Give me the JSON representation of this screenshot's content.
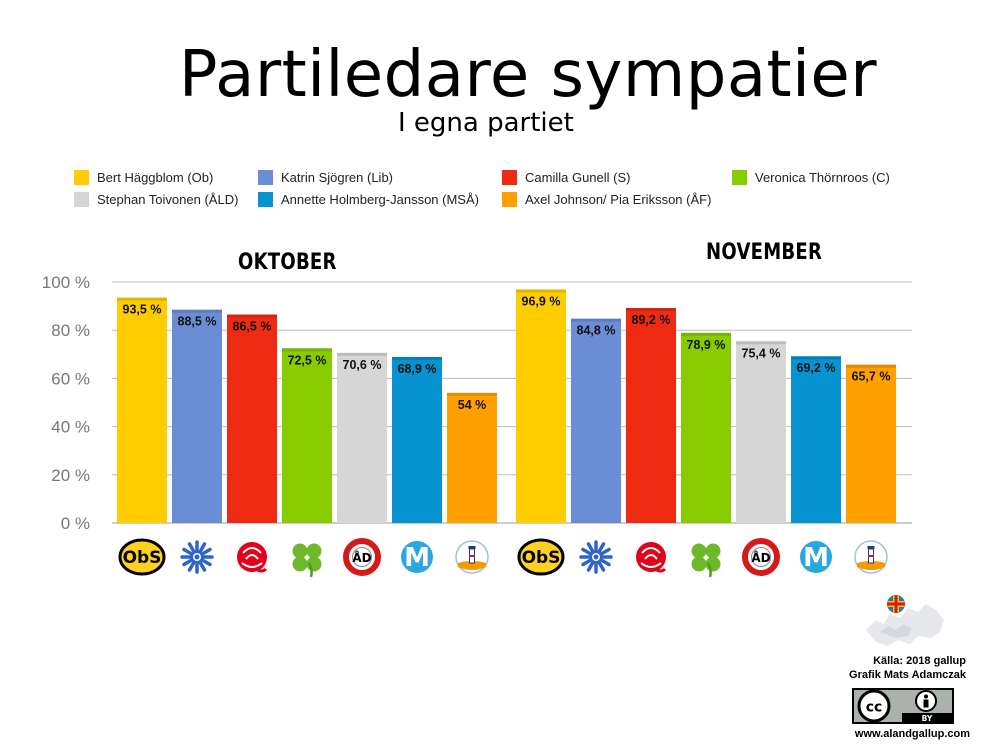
{
  "chart_data": {
    "type": "bar",
    "title": "Partiledare sympatier",
    "subtitle": "I egna partiet",
    "groups": [
      "OKTOBER",
      "NOVEMBER"
    ],
    "series": [
      {
        "name": "Bert Häggblom (Ob)",
        "color": "#FFCC00",
        "logo": "obs-logo-icon",
        "values": [
          93.5,
          96.9
        ],
        "labels": [
          "93,5 %",
          "96,9 %"
        ]
      },
      {
        "name": "Katrin Sjögren (Lib)",
        "color": "#6B8DD6",
        "logo": "snowflake-logo-icon",
        "values": [
          88.5,
          84.8
        ],
        "labels": [
          "88,5 %",
          "84,8 %"
        ]
      },
      {
        "name": "Camilla Gunell (S)",
        "color": "#EE2A12",
        "logo": "rose-logo-icon",
        "values": [
          86.5,
          89.2
        ],
        "labels": [
          "86,5 %",
          "89,2 %"
        ]
      },
      {
        "name": "Veronica Thörnroos (C)",
        "color": "#88CC00",
        "logo": "clover-logo-icon",
        "values": [
          72.5,
          78.9
        ],
        "labels": [
          "72,5 %",
          "78,9 %"
        ]
      },
      {
        "name": "Stephan Toivonen (ÅLD)",
        "color": "#D6D6D6",
        "logo": "lifebuoy-ald-logo-icon",
        "values": [
          70.6,
          75.4
        ],
        "labels": [
          "70,6 %",
          "75,4 %"
        ]
      },
      {
        "name": "Annette Holmberg-Jansson (MSÅ)",
        "color": "#0792D0",
        "logo": "m-logo-icon",
        "values": [
          68.9,
          69.2
        ],
        "labels": [
          "68,9 %",
          "69,2 %"
        ]
      },
      {
        "name": "Axel Johnson/ Pia Eriksson (ÅF)",
        "color": "#FFA000",
        "logo": "lighthouse-logo-icon",
        "values": [
          54,
          65.7
        ],
        "labels": [
          "54 %",
          "65,7 %"
        ]
      }
    ],
    "yticks": [
      "0 %",
      "20 %",
      "40 %",
      "60 %",
      "80 %",
      "100 %"
    ],
    "ylim": [
      0,
      100
    ],
    "grid": true,
    "legend": "top"
  },
  "logos": {
    "obs_text": "ObS",
    "ald_text": "ÅD",
    "m_text": "M"
  },
  "credits": {
    "source": "Källa: 2018 gallup",
    "author": "Grafik Mats Adamczak",
    "url": "www.alandgallup.com",
    "cc_text": "cc",
    "by_text": "BY"
  }
}
